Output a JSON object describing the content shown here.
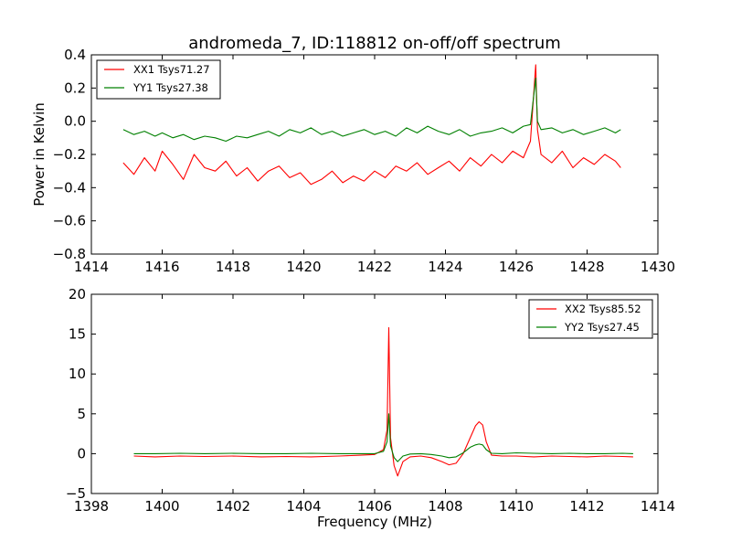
{
  "chart_data": [
    {
      "type": "line",
      "title": "andromeda_7, ID:118812 on-off/off spectrum",
      "xlabel": "",
      "ylabel": "Power in Kelvin",
      "xlim": [
        1414,
        1430
      ],
      "ylim": [
        -0.8,
        0.4
      ],
      "xticks": [
        1414,
        1416,
        1418,
        1420,
        1422,
        1424,
        1426,
        1428,
        1430
      ],
      "yticks": [
        -0.8,
        -0.6,
        -0.4,
        -0.2,
        0.0,
        0.2,
        0.4
      ],
      "xtick_labels": [
        "1414",
        "1416",
        "1418",
        "1420",
        "1422",
        "1424",
        "1426",
        "1428",
        "1430"
      ],
      "ytick_labels": [
        "−0.8",
        "−0.6",
        "−0.4",
        "−0.2",
        "0.0",
        "0.2",
        "0.4"
      ],
      "legend": "top-left",
      "grid": false,
      "series": [
        {
          "name": "XX1 Tsys71.27",
          "color": "#ff0000",
          "x": [
            1414.9,
            1415.2,
            1415.5,
            1415.8,
            1416.0,
            1416.3,
            1416.6,
            1416.9,
            1417.2,
            1417.5,
            1417.8,
            1418.1,
            1418.4,
            1418.7,
            1419.0,
            1419.3,
            1419.6,
            1419.9,
            1420.2,
            1420.5,
            1420.8,
            1421.1,
            1421.4,
            1421.7,
            1422.0,
            1422.3,
            1422.6,
            1422.9,
            1423.2,
            1423.5,
            1423.8,
            1424.1,
            1424.4,
            1424.7,
            1425.0,
            1425.3,
            1425.6,
            1425.9,
            1426.2,
            1426.4,
            1426.55,
            1426.6,
            1426.7,
            1427.0,
            1427.3,
            1427.6,
            1427.9,
            1428.2,
            1428.5,
            1428.8,
            1428.95
          ],
          "y": [
            -0.25,
            -0.32,
            -0.22,
            -0.3,
            -0.18,
            -0.26,
            -0.35,
            -0.2,
            -0.28,
            -0.3,
            -0.24,
            -0.33,
            -0.28,
            -0.36,
            -0.3,
            -0.27,
            -0.34,
            -0.31,
            -0.38,
            -0.35,
            -0.3,
            -0.37,
            -0.33,
            -0.36,
            -0.3,
            -0.34,
            -0.27,
            -0.3,
            -0.25,
            -0.32,
            -0.28,
            -0.24,
            -0.3,
            -0.22,
            -0.27,
            -0.2,
            -0.25,
            -0.18,
            -0.22,
            -0.12,
            0.34,
            -0.05,
            -0.2,
            -0.25,
            -0.18,
            -0.28,
            -0.22,
            -0.26,
            -0.2,
            -0.24,
            -0.28
          ]
        },
        {
          "name": "YY1 Tsys27.38",
          "color": "#008000",
          "x": [
            1414.9,
            1415.2,
            1415.5,
            1415.8,
            1416.0,
            1416.3,
            1416.6,
            1416.9,
            1417.2,
            1417.5,
            1417.8,
            1418.1,
            1418.4,
            1418.7,
            1419.0,
            1419.3,
            1419.6,
            1419.9,
            1420.2,
            1420.5,
            1420.8,
            1421.1,
            1421.4,
            1421.7,
            1422.0,
            1422.3,
            1422.6,
            1422.9,
            1423.2,
            1423.5,
            1423.8,
            1424.1,
            1424.4,
            1424.7,
            1425.0,
            1425.3,
            1425.6,
            1425.9,
            1426.2,
            1426.4,
            1426.55,
            1426.6,
            1426.7,
            1427.0,
            1427.3,
            1427.6,
            1427.9,
            1428.2,
            1428.5,
            1428.8,
            1428.95
          ],
          "y": [
            -0.05,
            -0.08,
            -0.06,
            -0.09,
            -0.07,
            -0.1,
            -0.08,
            -0.11,
            -0.09,
            -0.1,
            -0.12,
            -0.09,
            -0.1,
            -0.08,
            -0.06,
            -0.09,
            -0.05,
            -0.07,
            -0.04,
            -0.08,
            -0.06,
            -0.09,
            -0.07,
            -0.05,
            -0.08,
            -0.06,
            -0.09,
            -0.04,
            -0.07,
            -0.03,
            -0.06,
            -0.08,
            -0.05,
            -0.09,
            -0.07,
            -0.06,
            -0.04,
            -0.07,
            -0.03,
            -0.02,
            0.26,
            0.0,
            -0.05,
            -0.04,
            -0.07,
            -0.05,
            -0.08,
            -0.06,
            -0.04,
            -0.07,
            -0.05
          ]
        }
      ]
    },
    {
      "type": "line",
      "title": "",
      "xlabel": "Frequency (MHz)",
      "ylabel": "",
      "xlim": [
        1398,
        1414
      ],
      "ylim": [
        -5,
        20
      ],
      "xticks": [
        1398,
        1400,
        1402,
        1404,
        1406,
        1408,
        1410,
        1412,
        1414
      ],
      "yticks": [
        -5,
        0,
        5,
        10,
        15,
        20
      ],
      "xtick_labels": [
        "1398",
        "1400",
        "1402",
        "1404",
        "1406",
        "1408",
        "1410",
        "1412",
        "1414"
      ],
      "ytick_labels": [
        "−5",
        "0",
        "5",
        "10",
        "15",
        "20"
      ],
      "legend": "top-right",
      "grid": false,
      "series": [
        {
          "name": "XX2 Tsys85.52",
          "color": "#ff0000",
          "x": [
            1399.2,
            1399.8,
            1400.5,
            1401.2,
            1402.0,
            1402.8,
            1403.5,
            1404.2,
            1405.0,
            1405.6,
            1406.0,
            1406.25,
            1406.35,
            1406.4,
            1406.45,
            1406.55,
            1406.65,
            1406.8,
            1407.0,
            1407.3,
            1407.6,
            1407.9,
            1408.1,
            1408.3,
            1408.5,
            1408.7,
            1408.85,
            1408.95,
            1409.05,
            1409.15,
            1409.3,
            1409.6,
            1410.0,
            1410.5,
            1411.0,
            1411.5,
            1412.0,
            1412.5,
            1413.0,
            1413.3
          ],
          "y": [
            -0.3,
            -0.4,
            -0.3,
            -0.35,
            -0.3,
            -0.4,
            -0.35,
            -0.4,
            -0.3,
            -0.2,
            -0.1,
            0.5,
            3.0,
            15.8,
            2.0,
            -1.5,
            -2.8,
            -1.0,
            -0.4,
            -0.3,
            -0.5,
            -1.0,
            -1.4,
            -1.2,
            0.0,
            2.0,
            3.5,
            4.0,
            3.6,
            1.5,
            -0.2,
            -0.3,
            -0.3,
            -0.4,
            -0.3,
            -0.35,
            -0.4,
            -0.3,
            -0.35,
            -0.4
          ]
        },
        {
          "name": "YY2 Tsys27.45",
          "color": "#008000",
          "x": [
            1399.2,
            1399.8,
            1400.5,
            1401.2,
            1402.0,
            1402.8,
            1403.5,
            1404.2,
            1405.0,
            1405.6,
            1406.0,
            1406.25,
            1406.35,
            1406.4,
            1406.45,
            1406.55,
            1406.65,
            1406.8,
            1407.0,
            1407.3,
            1407.6,
            1407.9,
            1408.1,
            1408.3,
            1408.5,
            1408.7,
            1408.85,
            1408.95,
            1409.05,
            1409.15,
            1409.3,
            1409.6,
            1410.0,
            1410.5,
            1411.0,
            1411.5,
            1412.0,
            1412.5,
            1413.0,
            1413.3
          ],
          "y": [
            0.0,
            0.0,
            0.05,
            0.0,
            0.05,
            0.0,
            0.0,
            0.05,
            0.0,
            0.0,
            0.0,
            0.3,
            1.5,
            5.0,
            1.0,
            -0.5,
            -1.0,
            -0.3,
            -0.05,
            0.0,
            -0.1,
            -0.3,
            -0.5,
            -0.4,
            0.1,
            0.8,
            1.1,
            1.2,
            1.1,
            0.5,
            0.05,
            0.0,
            0.1,
            0.05,
            0.0,
            0.05,
            0.0,
            0.0,
            0.05,
            0.0
          ]
        }
      ]
    }
  ]
}
